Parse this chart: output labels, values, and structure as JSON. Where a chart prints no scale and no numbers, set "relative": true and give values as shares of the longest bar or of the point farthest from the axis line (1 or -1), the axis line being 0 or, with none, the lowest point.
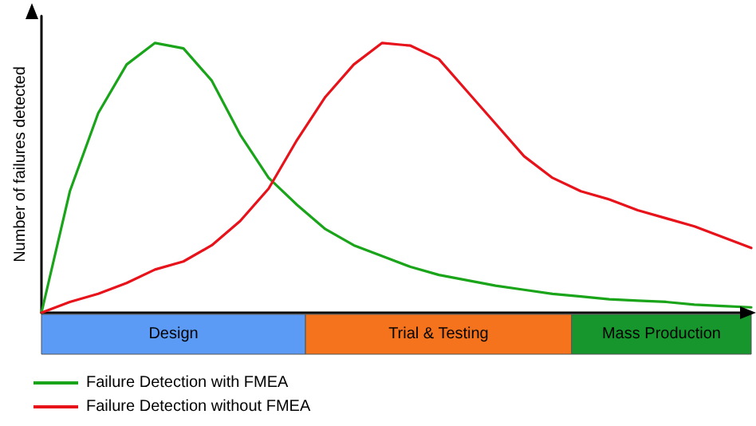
{
  "chart_data": {
    "type": "line",
    "relative": true,
    "ylabel": "Number of failures detected",
    "grid": false,
    "legend": "bottom left",
    "marker": "none",
    "line_style": "solid",
    "categories": [
      null,
      null,
      null,
      null,
      null,
      null,
      null,
      null,
      null,
      null,
      null,
      null,
      null,
      null,
      null,
      null,
      null,
      null,
      null,
      null,
      null,
      null,
      null,
      null,
      null,
      null
    ],
    "series": [
      {
        "name": "Failure Detection with FMEA",
        "color": "#1aa41a",
        "values": [
          0,
          0.45,
          0.74,
          0.92,
          1,
          0.98,
          0.86,
          0.66,
          0.5,
          0.4,
          0.31,
          0.25,
          0.21,
          0.17,
          0.14,
          0.12,
          0.1,
          0.085,
          0.07,
          0.06,
          0.05,
          0.045,
          0.04,
          0.03,
          0.025,
          0.02
        ]
      },
      {
        "name": "Failure Detection without FMEA",
        "color": "#e8121a",
        "values": [
          0,
          0.04,
          0.07,
          0.11,
          0.16,
          0.19,
          0.25,
          0.34,
          0.46,
          0.64,
          0.8,
          0.92,
          1,
          0.99,
          0.94,
          0.82,
          0.7,
          0.58,
          0.5,
          0.45,
          0.42,
          0.38,
          0.35,
          0.32,
          0.28,
          0.24
        ]
      }
    ],
    "annotations": [
      "Design",
      "Trial & Testing",
      "Mass Production"
    ]
  }
}
